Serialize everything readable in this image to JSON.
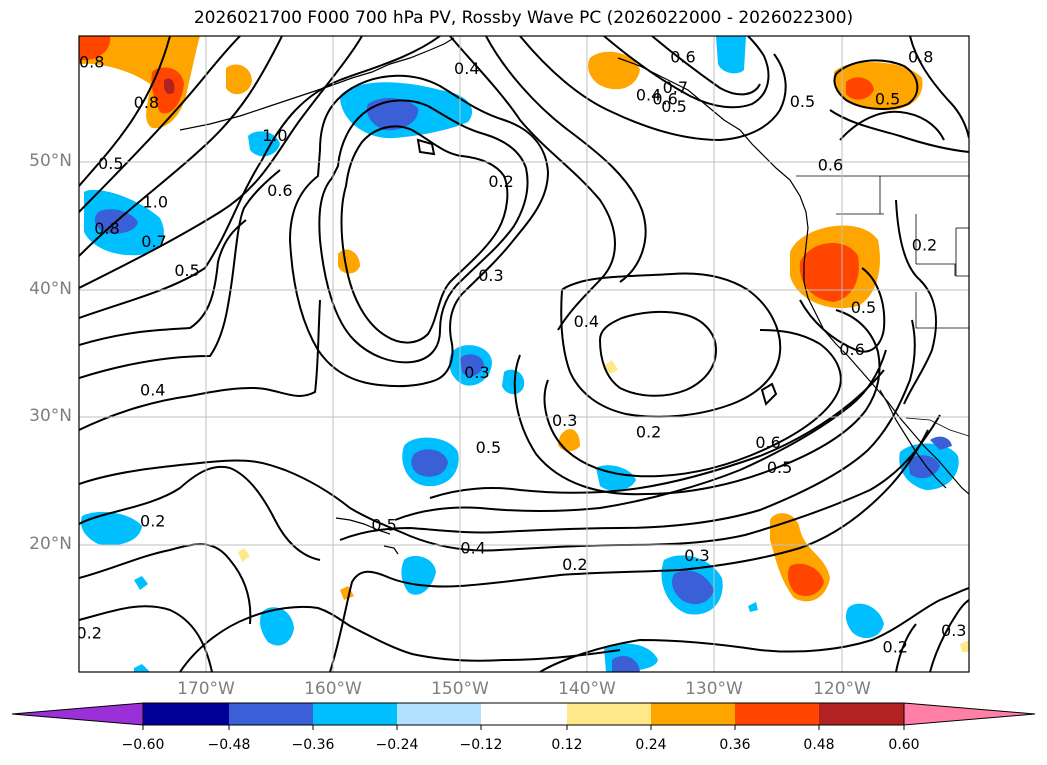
{
  "title": "2026021700 F000 700 hPa PV, Rossby Wave PC (2026022000 - 2026022300)",
  "map": {
    "lon_range": [
      -180,
      -110
    ],
    "lat_range": [
      10,
      60
    ],
    "lat_labels": [
      "50°N",
      "40°N",
      "30°N",
      "20°N"
    ],
    "lon_labels": [
      "170°W",
      "160°W",
      "150°W",
      "140°W",
      "130°W",
      "120°W"
    ],
    "contour_labels": [
      {
        "text": "0.8",
        "lon": -177.8,
        "lat": 44.9
      },
      {
        "text": "0.7",
        "lon": -174.1,
        "lat": 43.9
      },
      {
        "text": "0.5",
        "lon": -171.5,
        "lat": 41.6
      },
      {
        "text": "0.4",
        "lon": -174.2,
        "lat": 32.2
      },
      {
        "text": "1.0",
        "lon": -174.0,
        "lat": 47.0
      },
      {
        "text": "0.6",
        "lon": -164.2,
        "lat": 47.9
      },
      {
        "text": "1.0",
        "lon": -164.6,
        "lat": 52.2
      },
      {
        "text": "0.2",
        "lon": -146.8,
        "lat": 48.6
      },
      {
        "text": "0.3",
        "lon": -147.6,
        "lat": 41.2
      },
      {
        "text": "0.4",
        "lon": -149.5,
        "lat": 57.5
      },
      {
        "text": "0.3",
        "lon": -148.7,
        "lat": 33.6
      },
      {
        "text": "0.5",
        "lon": -147.8,
        "lat": 27.7
      },
      {
        "text": "0.4",
        "lon": -140.1,
        "lat": 37.6
      },
      {
        "text": "0.3",
        "lon": -141.8,
        "lat": 29.8
      },
      {
        "text": "0.2",
        "lon": -135.2,
        "lat": 28.9
      },
      {
        "text": "0.5",
        "lon": -133.2,
        "lat": 54.5
      },
      {
        "text": "0.6",
        "lon": -133.9,
        "lat": 55.1
      },
      {
        "text": "0.7",
        "lon": -133.1,
        "lat": 56.0
      },
      {
        "text": "0.4",
        "lon": -135.2,
        "lat": 55.4
      },
      {
        "text": "0.6",
        "lon": -132.5,
        "lat": 58.4
      },
      {
        "text": "0.5",
        "lon": -123.1,
        "lat": 54.9
      },
      {
        "text": "0.6",
        "lon": -120.9,
        "lat": 49.9
      },
      {
        "text": "0.8",
        "lon": -113.8,
        "lat": 58.4
      },
      {
        "text": "0.5",
        "lon": -116.4,
        "lat": 55.1
      },
      {
        "text": "0.2",
        "lon": -113.5,
        "lat": 43.6
      },
      {
        "text": "0.5",
        "lon": -118.3,
        "lat": 38.7
      },
      {
        "text": "0.6",
        "lon": -119.2,
        "lat": 35.4
      },
      {
        "text": "0.6",
        "lon": -125.8,
        "lat": 28.1
      },
      {
        "text": "0.5",
        "lon": -124.9,
        "lat": 26.1
      },
      {
        "text": "0.5",
        "lon": -156.0,
        "lat": 21.6
      },
      {
        "text": "0.4",
        "lon": -149.0,
        "lat": 19.8
      },
      {
        "text": "0.2",
        "lon": -141.0,
        "lat": 18.5
      },
      {
        "text": "0.3",
        "lon": -131.4,
        "lat": 19.2
      },
      {
        "text": "0.2",
        "lon": -174.2,
        "lat": 21.9
      },
      {
        "text": "0.2",
        "lon": -179.2,
        "lat": 13.1
      },
      {
        "text": "0.2",
        "lon": -115.8,
        "lat": 12.0
      },
      {
        "text": "0.3",
        "lon": -111.2,
        "lat": 13.3
      },
      {
        "text": "0.8",
        "lon": -179.0,
        "lat": 58.0
      },
      {
        "text": "0.8",
        "lon": -174.7,
        "lat": 54.8
      },
      {
        "text": "0.5",
        "lon": -177.5,
        "lat": 50.0
      }
    ]
  },
  "colorbar": {
    "ticks": [
      "−0.60",
      "−0.48",
      "−0.36",
      "−0.24",
      "−0.12",
      "0.12",
      "0.24",
      "0.36",
      "0.48",
      "0.60"
    ],
    "colors": [
      "#9b30d9",
      "#000096",
      "#3a5fd6",
      "#00bfff",
      "#b0e2ff",
      "#ffffff",
      "#ffe88a",
      "#ffa500",
      "#ff4500",
      "#b22222",
      "#ff7fa7"
    ]
  }
}
